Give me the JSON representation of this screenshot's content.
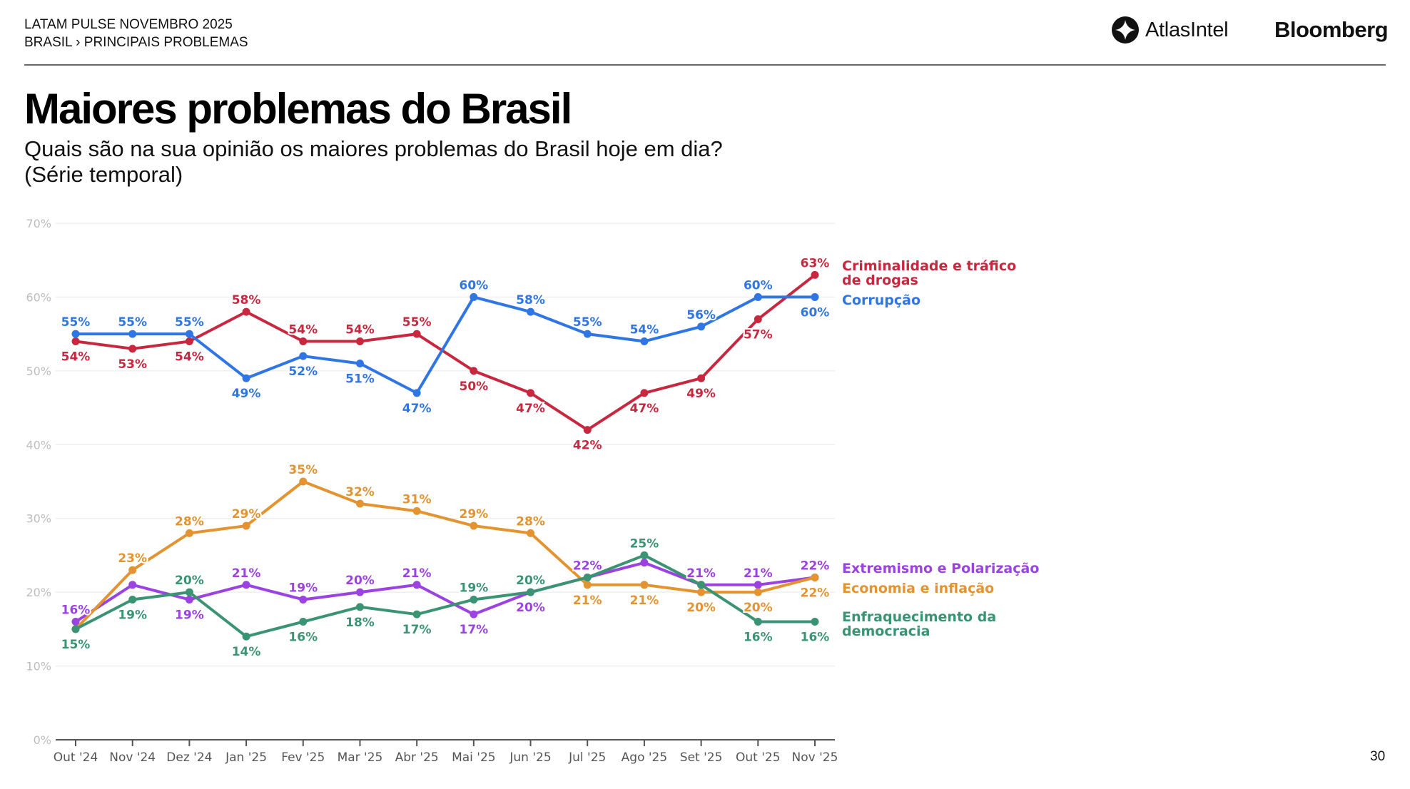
{
  "header": {
    "line1": "LATAM PULSE NOVEMBRO 2025",
    "breadcrumb": [
      "BRASIL",
      "›",
      "PRINCIPAIS PROBLEMAS"
    ],
    "logos": {
      "atlas": "AtlasIntel",
      "bloomberg": "Bloomberg"
    }
  },
  "title": "Maiores problemas do Brasil",
  "subtitle_line1": "Quais são na sua opinião os maiores problemas do Brasil hoje em dia?",
  "subtitle_line2": "(Série temporal)",
  "page_number": "30",
  "chart_data": {
    "type": "line",
    "title": "Maiores problemas do Brasil",
    "xlabel": "",
    "ylabel": "",
    "ylim": [
      0,
      70
    ],
    "yticks": [
      0,
      10,
      20,
      30,
      40,
      50,
      60,
      70
    ],
    "ytick_labels": [
      "0%",
      "10%",
      "20%",
      "30%",
      "40%",
      "50%",
      "60%",
      "70%"
    ],
    "grid": true,
    "legend": "right, inline labels at series end",
    "categories": [
      "Out '24",
      "Nov '24",
      "Dez '24",
      "Jan '25",
      "Fev '25",
      "Mar '25",
      "Abr '25",
      "Mai '25",
      "Jun '25",
      "Jul '25",
      "Ago '25",
      "Set '25",
      "Out '25",
      "Nov '25"
    ],
    "series": [
      {
        "name": "Criminalidade e tráfico de drogas",
        "name_lines": [
          "Criminalidade e tráfico",
          "de drogas"
        ],
        "color": "#c8283f",
        "values": [
          54,
          53,
          54,
          58,
          54,
          54,
          55,
          50,
          47,
          42,
          47,
          49,
          57,
          63
        ],
        "labels": [
          "54%",
          "53%",
          "54%",
          "58%",
          "54%",
          "54%",
          "55%",
          "50%",
          "47%",
          "42%",
          "47%",
          "49%",
          "57%",
          "63%"
        ],
        "label_pos": [
          "below",
          "below",
          "below",
          "above",
          "above",
          "above",
          "above",
          "below",
          "below",
          "below",
          "below",
          "below",
          "below",
          "above"
        ]
      },
      {
        "name": "Corrupção",
        "name_lines": [
          "Corrupção"
        ],
        "color": "#2f76e4",
        "values": [
          55,
          55,
          55,
          49,
          52,
          51,
          47,
          60,
          58,
          55,
          54,
          56,
          60,
          60
        ],
        "labels": [
          "55%",
          "55%",
          "55%",
          "49%",
          "52%",
          "51%",
          "47%",
          "60%",
          "58%",
          "55%",
          "54%",
          "56%",
          "60%",
          "60%"
        ],
        "label_pos": [
          "above",
          "above",
          "above",
          "below",
          "below",
          "below",
          "below",
          "above",
          "above",
          "above",
          "above",
          "above",
          "above",
          "below"
        ]
      },
      {
        "name": "Extremismo e Polarização",
        "name_lines": [
          "Extremismo e Polarização"
        ],
        "color": "#9b43e0",
        "values": [
          16,
          21,
          19,
          21,
          19,
          20,
          21,
          17,
          20,
          22,
          24,
          21,
          21,
          22
        ],
        "labels": [
          "16%",
          "",
          "19%",
          "21%",
          "19%",
          "20%",
          "21%",
          "17%",
          "20%",
          "22%",
          "",
          "21%",
          "21%",
          "22%"
        ],
        "label_pos": [
          "above",
          "above",
          "below",
          "above",
          "above",
          "above",
          "above",
          "below",
          "below",
          "above",
          "above",
          "above",
          "above",
          "above"
        ]
      },
      {
        "name": "Economia e inflação",
        "name_lines": [
          "Economia e inflação"
        ],
        "color": "#e3932f",
        "values": [
          15,
          23,
          28,
          29,
          35,
          32,
          31,
          29,
          28,
          21,
          21,
          20,
          20,
          22
        ],
        "labels": [
          "",
          "23%",
          "28%",
          "29%",
          "35%",
          "32%",
          "31%",
          "29%",
          "28%",
          "21%",
          "21%",
          "20%",
          "20%",
          "22%"
        ],
        "label_pos": [
          "above",
          "above",
          "above",
          "above",
          "above",
          "above",
          "above",
          "above",
          "above",
          "below",
          "below",
          "below",
          "below",
          "below"
        ]
      },
      {
        "name": "Enfraquecimento da democracia",
        "name_lines": [
          "Enfraquecimento da",
          "democracia"
        ],
        "color": "#3a9474",
        "values": [
          15,
          19,
          20,
          14,
          16,
          18,
          17,
          19,
          20,
          22,
          25,
          21,
          16,
          16
        ],
        "labels": [
          "15%",
          "19%",
          "20%",
          "14%",
          "16%",
          "18%",
          "17%",
          "19%",
          "20%",
          "",
          "25%",
          "",
          "16%",
          "16%"
        ],
        "label_pos": [
          "below",
          "below",
          "above",
          "below",
          "below",
          "below",
          "below",
          "above",
          "above",
          "above",
          "above",
          "above",
          "below",
          "below"
        ]
      }
    ]
  }
}
